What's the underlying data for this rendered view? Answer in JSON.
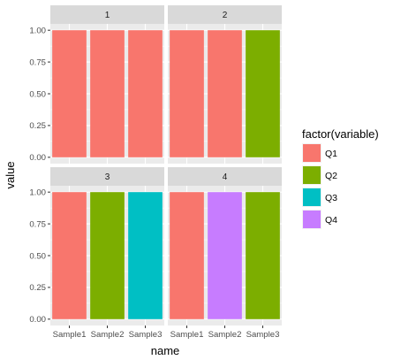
{
  "chart_data": {
    "type": "bar",
    "xlabel": "name",
    "ylabel": "value",
    "ylim": [
      0,
      1
    ],
    "yticks": [
      "0.00",
      "0.25",
      "0.50",
      "0.75",
      "1.00"
    ],
    "categories": [
      "Sample1",
      "Sample2",
      "Sample3"
    ],
    "grid": true,
    "legend": {
      "title": "factor(variable)",
      "position": "right",
      "entries": [
        {
          "label": "Q1",
          "color": "#F8766D"
        },
        {
          "label": "Q2",
          "color": "#7CAE00"
        },
        {
          "label": "Q3",
          "color": "#00BFC4"
        },
        {
          "label": "Q4",
          "color": "#C77CFF"
        }
      ]
    },
    "facets": [
      {
        "label": "1",
        "bars": [
          {
            "category": "Sample1",
            "value": 1.0,
            "variable": "Q1"
          },
          {
            "category": "Sample2",
            "value": 1.0,
            "variable": "Q1"
          },
          {
            "category": "Sample3",
            "value": 1.0,
            "variable": "Q1"
          }
        ]
      },
      {
        "label": "2",
        "bars": [
          {
            "category": "Sample1",
            "value": 1.0,
            "variable": "Q1"
          },
          {
            "category": "Sample2",
            "value": 1.0,
            "variable": "Q1"
          },
          {
            "category": "Sample3",
            "value": 1.0,
            "variable": "Q2"
          }
        ]
      },
      {
        "label": "3",
        "bars": [
          {
            "category": "Sample1",
            "value": 1.0,
            "variable": "Q1"
          },
          {
            "category": "Sample2",
            "value": 1.0,
            "variable": "Q2"
          },
          {
            "category": "Sample3",
            "value": 1.0,
            "variable": "Q3"
          }
        ]
      },
      {
        "label": "4",
        "bars": [
          {
            "category": "Sample1",
            "value": 1.0,
            "variable": "Q1"
          },
          {
            "category": "Sample2",
            "value": 1.0,
            "variable": "Q4"
          },
          {
            "category": "Sample3",
            "value": 1.0,
            "variable": "Q2"
          }
        ]
      }
    ]
  },
  "colors": {
    "panel_bg": "#EBEBEB",
    "strip_bg": "#D9D9D9",
    "grid_major": "#FFFFFF"
  }
}
